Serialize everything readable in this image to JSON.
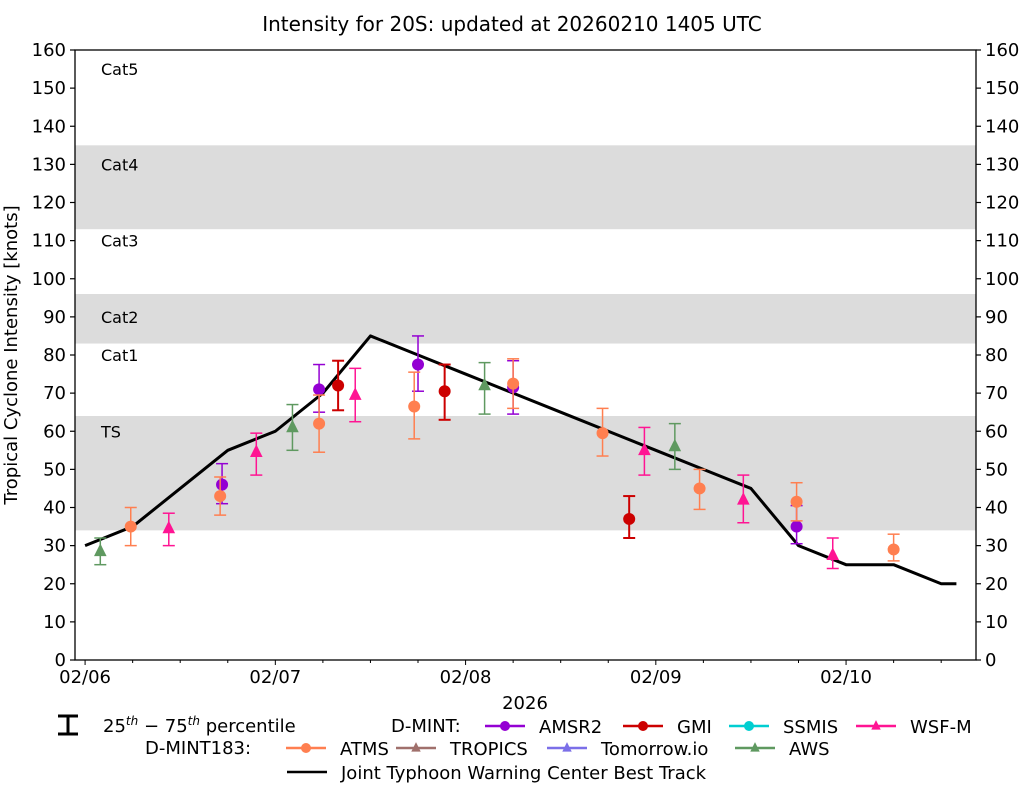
{
  "chart_data": {
    "type": "scatter",
    "title": "Intensity for 20S: updated at 20260210 1405 UTC",
    "xlabel": "2026",
    "ylabel": "Tropical Cyclone Intensity [knots]",
    "x_units": "days since 02/06 00 UTC",
    "xlim": [
      -0.053,
      4.683
    ],
    "ylim": [
      0,
      160
    ],
    "x_ticks": [
      {
        "value": 0,
        "label": "02/06"
      },
      {
        "value": 1,
        "label": "02/07"
      },
      {
        "value": 2,
        "label": "02/08"
      },
      {
        "value": 3,
        "label": "02/09"
      },
      {
        "value": 4,
        "label": "02/10"
      }
    ],
    "x_minor_tick_step_days": 0.25,
    "y_ticks": [
      0,
      10,
      20,
      30,
      40,
      50,
      60,
      70,
      80,
      90,
      100,
      110,
      120,
      130,
      140,
      150,
      160
    ],
    "y_ticks_right": true,
    "grid": false,
    "category_bands": [
      {
        "label": "TS",
        "y0": 34,
        "y1": 64,
        "shaded": true,
        "label_y": 60
      },
      {
        "label": "Cat1",
        "y0": 64,
        "y1": 83,
        "shaded": false,
        "label_y": 80
      },
      {
        "label": "Cat2",
        "y0": 83,
        "y1": 96,
        "shaded": true,
        "label_y": 90
      },
      {
        "label": "Cat3",
        "y0": 96,
        "y1": 113,
        "shaded": false,
        "label_y": 110
      },
      {
        "label": "Cat4",
        "y0": 113,
        "y1": 135,
        "shaded": true,
        "label_y": 130
      },
      {
        "label": "Cat5",
        "y0": 135,
        "y1": 160,
        "shaded": false,
        "label_y": 155
      }
    ],
    "best_track": {
      "name": "Joint Typhoon Warning Center Best Track",
      "color": "#000000",
      "points": [
        [
          0.0,
          30
        ],
        [
          0.25,
          35
        ],
        [
          0.5,
          45
        ],
        [
          0.75,
          55
        ],
        [
          1.0,
          60
        ],
        [
          1.25,
          70
        ],
        [
          1.5,
          85
        ],
        [
          1.75,
          80
        ],
        [
          2.0,
          75
        ],
        [
          2.25,
          70
        ],
        [
          2.5,
          65
        ],
        [
          2.75,
          60
        ],
        [
          3.0,
          55
        ],
        [
          3.25,
          50
        ],
        [
          3.5,
          45
        ],
        [
          3.75,
          30
        ],
        [
          4.0,
          25
        ],
        [
          4.25,
          25
        ],
        [
          4.5,
          20
        ],
        [
          4.58,
          20
        ]
      ]
    },
    "series": [
      {
        "name": "AMSR2",
        "group": "D-MINT",
        "marker": "circle",
        "color": "#9400d3",
        "points": [
          {
            "x": 0.72,
            "y": 46,
            "lo": 41,
            "hi": 51.5
          },
          {
            "x": 1.23,
            "y": 71,
            "lo": 65,
            "hi": 77.5
          },
          {
            "x": 1.75,
            "y": 77.5,
            "lo": 70.5,
            "hi": 85
          },
          {
            "x": 2.25,
            "y": 71.5,
            "lo": 64.5,
            "hi": 78.5
          },
          {
            "x": 3.74,
            "y": 35,
            "lo": 30.5,
            "hi": 40.5
          }
        ]
      },
      {
        "name": "GMI",
        "group": "D-MINT",
        "marker": "circle",
        "color": "#cc0000",
        "points": [
          {
            "x": 1.33,
            "y": 72,
            "lo": 65.5,
            "hi": 78.5
          },
          {
            "x": 1.89,
            "y": 70.5,
            "lo": 63,
            "hi": 77.5
          },
          {
            "x": 2.86,
            "y": 37,
            "lo": 32,
            "hi": 43
          }
        ]
      },
      {
        "name": "SSMIS",
        "group": "D-MINT",
        "marker": "circle",
        "color": "#00ced1",
        "points": []
      },
      {
        "name": "WSF-M",
        "group": "D-MINT",
        "marker": "triangle",
        "color": "#ff1493",
        "points": [
          {
            "x": 0.44,
            "y": 34.5,
            "lo": 30,
            "hi": 38.5
          },
          {
            "x": 0.9,
            "y": 54.5,
            "lo": 48.5,
            "hi": 59.5
          },
          {
            "x": 1.42,
            "y": 69.5,
            "lo": 62.5,
            "hi": 76.5
          },
          {
            "x": 2.94,
            "y": 55,
            "lo": 48.5,
            "hi": 61
          },
          {
            "x": 3.46,
            "y": 42,
            "lo": 36,
            "hi": 48.5
          },
          {
            "x": 3.93,
            "y": 27.5,
            "lo": 24,
            "hi": 32
          }
        ]
      },
      {
        "name": "ATMS",
        "group": "D-MINT183",
        "marker": "circle",
        "color": "#ff7f50",
        "points": [
          {
            "x": 0.24,
            "y": 35,
            "lo": 30,
            "hi": 40
          },
          {
            "x": 0.71,
            "y": 43,
            "lo": 38,
            "hi": 48
          },
          {
            "x": 1.23,
            "y": 62,
            "lo": 54.5,
            "hi": 69.5
          },
          {
            "x": 1.73,
            "y": 66.5,
            "lo": 58,
            "hi": 75.5
          },
          {
            "x": 2.25,
            "y": 72.5,
            "lo": 66,
            "hi": 79
          },
          {
            "x": 2.72,
            "y": 59.5,
            "lo": 53.5,
            "hi": 66
          },
          {
            "x": 3.23,
            "y": 45,
            "lo": 39.5,
            "hi": 50
          },
          {
            "x": 3.74,
            "y": 41.5,
            "lo": 36.5,
            "hi": 46.5
          },
          {
            "x": 4.25,
            "y": 29,
            "lo": 26,
            "hi": 33
          }
        ]
      },
      {
        "name": "TROPICS",
        "group": "D-MINT183",
        "marker": "triangle",
        "color": "#a0706c",
        "points": []
      },
      {
        "name": "Tomorrow.io",
        "group": "D-MINT183",
        "marker": "triangle",
        "color": "#7b6fe8",
        "points": []
      },
      {
        "name": "AWS",
        "group": "D-MINT183",
        "marker": "triangle",
        "color": "#5f9960",
        "points": [
          {
            "x": 0.08,
            "y": 28.5,
            "lo": 25,
            "hi": 32
          },
          {
            "x": 1.09,
            "y": 61,
            "lo": 55,
            "hi": 67
          },
          {
            "x": 2.1,
            "y": 72,
            "lo": 64.5,
            "hi": 78
          },
          {
            "x": 3.1,
            "y": 56,
            "lo": 50,
            "hi": 62
          }
        ]
      }
    ],
    "legend": {
      "placement": "bottom-center",
      "percentile_label_pre": "25",
      "percentile_sup1": "th",
      "percentile_mid": " − 75",
      "percentile_sup2": "th",
      "percentile_post": " percentile",
      "group1_label": "D-MINT:",
      "group2_label": "D-MINT183:",
      "best_track_label": "Joint Typhoon Warning Center Best Track"
    }
  }
}
